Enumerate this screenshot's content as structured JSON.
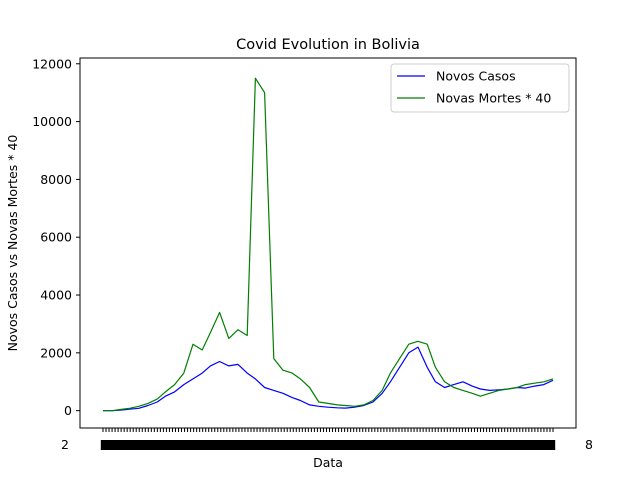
{
  "chart_data": {
    "type": "line",
    "title": "Covid Evolution in Bolivia",
    "xlabel": "Data",
    "ylabel": "Novos Casos vs Novas Mortes * 40",
    "ylim": [
      -600,
      12200
    ],
    "yticks": [
      0,
      2000,
      4000,
      6000,
      8000,
      10000,
      12000
    ],
    "ytick_labels": [
      "0",
      "2000",
      "4000",
      "6000",
      "8000",
      "10000",
      "12000"
    ],
    "x_tick_count": 150,
    "x_tick_label_left": "2",
    "x_tick_label_right": "8",
    "x": [
      0,
      9,
      17,
      26,
      35,
      44,
      53,
      61,
      70,
      79,
      88,
      97,
      105,
      114,
      123,
      132,
      141,
      149,
      158,
      167,
      176,
      185,
      193,
      202,
      211,
      220,
      229,
      237,
      246,
      255,
      264,
      273,
      281,
      290,
      299,
      308,
      317,
      325,
      334,
      343,
      352,
      361,
      369,
      378,
      387,
      396,
      405,
      413,
      422,
      431,
      440
    ],
    "series": [
      {
        "name": "Novos Casos",
        "color": "#0000ff",
        "values": [
          0,
          0,
          20,
          50,
          80,
          180,
          300,
          500,
          650,
          900,
          1100,
          1300,
          1550,
          1700,
          1550,
          1600,
          1300,
          1100,
          800,
          700,
          600,
          450,
          350,
          200,
          150,
          120,
          100,
          90,
          120,
          180,
          300,
          600,
          1000,
          1500,
          2000,
          2200,
          1500,
          1000,
          800,
          900,
          1000,
          850,
          750,
          700,
          720,
          750,
          800,
          780,
          850,
          900,
          1050
        ]
      },
      {
        "name": "Novas Mortes * 40",
        "color": "#008000",
        "values": [
          0,
          0,
          40,
          80,
          150,
          250,
          400,
          650,
          900,
          1300,
          2300,
          2100,
          2700,
          3400,
          2500,
          2800,
          2600,
          11500,
          11000,
          1800,
          1400,
          1300,
          1100,
          800,
          300,
          250,
          200,
          180,
          150,
          200,
          350,
          700,
          1300,
          1800,
          2300,
          2400,
          2300,
          1500,
          1000,
          800,
          700,
          600,
          500,
          600,
          700,
          750,
          800,
          900,
          950,
          1000,
          1100
        ]
      }
    ],
    "legend_position": "upper right",
    "grid": false
  }
}
